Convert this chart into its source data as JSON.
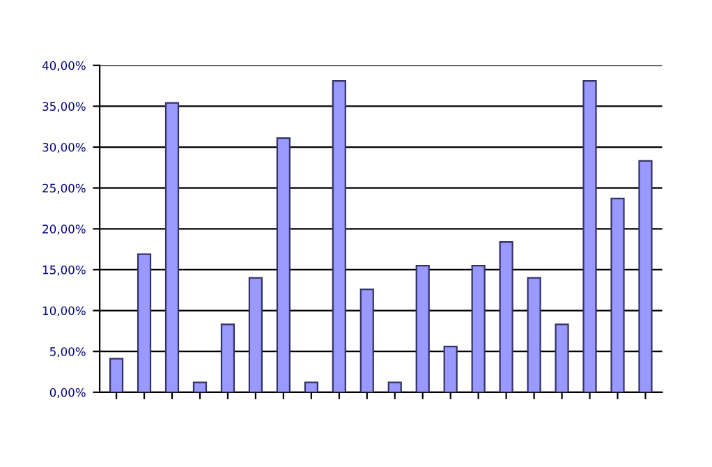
{
  "chart_data": {
    "type": "bar",
    "categories": [
      null,
      null,
      null,
      null,
      null,
      null,
      null,
      null,
      null,
      null,
      null,
      null,
      null,
      null,
      null,
      null,
      null,
      null,
      null,
      null
    ],
    "values": [
      4.1,
      16.9,
      35.4,
      1.2,
      8.3,
      14.0,
      31.1,
      1.2,
      38.1,
      12.6,
      1.2,
      15.5,
      5.6,
      15.5,
      18.4,
      14.0,
      8.3,
      38.1,
      23.7,
      28.3
    ],
    "color": "#9999ff",
    "ylim": [
      0,
      40
    ],
    "yticks": [
      {
        "value": 0,
        "label": "0,00%"
      },
      {
        "value": 5,
        "label": "5,00%"
      },
      {
        "value": 10,
        "label": "10,00%"
      },
      {
        "value": 15,
        "label": "15,00%"
      },
      {
        "value": 20,
        "label": "20,00%"
      },
      {
        "value": 25,
        "label": "25,00%"
      },
      {
        "value": 30,
        "label": "30,00%"
      },
      {
        "value": 35,
        "label": "35,00%"
      },
      {
        "value": 40,
        "label": "40,00%"
      }
    ],
    "grid": "y",
    "legend": false
  }
}
